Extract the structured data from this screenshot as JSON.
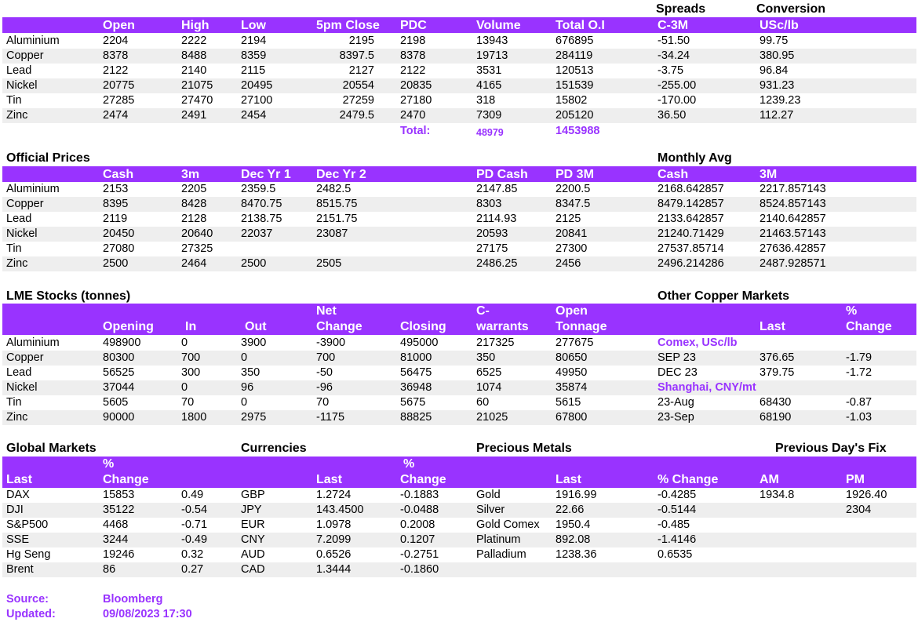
{
  "colors": {
    "header_bg": "#9933ff",
    "header_text": "#ffffff",
    "accent": "#9933ff",
    "row_shade": "#eeeeee"
  },
  "top": {
    "spreads_label": "Spreads",
    "conversion_label": "Conversion",
    "headers": [
      "Open",
      "High",
      "Low",
      "5pm Close",
      "PDC",
      "Volume",
      "Total O.I",
      "C-3M",
      "USc/lb"
    ],
    "rows": [
      {
        "name": "Aluminium",
        "open": "2204",
        "high": "2222",
        "low": "2194",
        "close": "2195",
        "pdc": "2198",
        "volume": "13943",
        "oi": "676895",
        "c3m": "-51.50",
        "usc": "99.75"
      },
      {
        "name": "Copper",
        "open": "8378",
        "high": "8488",
        "low": "8359",
        "close": "8397.5",
        "pdc": "8378",
        "volume": "19713",
        "oi": "284119",
        "c3m": "-34.24",
        "usc": "380.95"
      },
      {
        "name": "Lead",
        "open": "2122",
        "high": "2140",
        "low": "2115",
        "close": "2127",
        "pdc": "2122",
        "volume": "3531",
        "oi": "120513",
        "c3m": "-3.75",
        "usc": "96.84"
      },
      {
        "name": "Nickel",
        "open": "20775",
        "high": "21075",
        "low": "20495",
        "close": "20554",
        "pdc": "20835",
        "volume": "4165",
        "oi": "151539",
        "c3m": "-255.00",
        "usc": "931.23"
      },
      {
        "name": "Tin",
        "open": "27285",
        "high": "27470",
        "low": "27100",
        "close": "27259",
        "pdc": "27180",
        "volume": "318",
        "oi": "15802",
        "c3m": "-170.00",
        "usc": "1239.23"
      },
      {
        "name": "Zinc",
        "open": "2474",
        "high": "2491",
        "low": "2454",
        "close": "2479.5",
        "pdc": "2470",
        "volume": "7309",
        "oi": "205120",
        "c3m": "36.50",
        "usc": "112.27"
      }
    ],
    "total_label": "Total:",
    "total_volume": "48979",
    "total_oi": "1453988"
  },
  "official": {
    "title": "Official Prices",
    "monthly_title": "Monthly Avg",
    "headers": [
      "Cash",
      "3m",
      "Dec Yr 1",
      "Dec Yr 2",
      "PD Cash",
      "PD 3M",
      "Cash",
      "3M"
    ],
    "rows": [
      {
        "name": "Aluminium",
        "cash": "2153",
        "m3": "2205",
        "dec1": "2359.5",
        "dec2": "2482.5",
        "pdcash": "2147.85",
        "pd3m": "2200.5",
        "avgcash": "2168.642857",
        "avg3m": "2217.857143"
      },
      {
        "name": "Copper",
        "cash": "8395",
        "m3": "8428",
        "dec1": "8470.75",
        "dec2": "8515.75",
        "pdcash": "8303",
        "pd3m": "8347.5",
        "avgcash": "8479.142857",
        "avg3m": "8524.857143"
      },
      {
        "name": "Lead",
        "cash": "2119",
        "m3": "2128",
        "dec1": "2138.75",
        "dec2": "2151.75",
        "pdcash": "2114.93",
        "pd3m": "2125",
        "avgcash": "2133.642857",
        "avg3m": "2140.642857"
      },
      {
        "name": "Nickel",
        "cash": "20450",
        "m3": "20640",
        "dec1": "22037",
        "dec2": "23087",
        "pdcash": "20593",
        "pd3m": "20841",
        "avgcash": "21240.71429",
        "avg3m": "21463.57143"
      },
      {
        "name": "Tin",
        "cash": "27080",
        "m3": "27325",
        "dec1": "",
        "dec2": "",
        "pdcash": "27175",
        "pd3m": "27300",
        "avgcash": "27537.85714",
        "avg3m": "27636.42857"
      },
      {
        "name": "Zinc",
        "cash": "2500",
        "m3": "2464",
        "dec1": "2500",
        "dec2": "2505",
        "pdcash": "2486.25",
        "pd3m": "2456",
        "avgcash": "2496.214286",
        "avg3m": "2487.928571"
      }
    ]
  },
  "stocks": {
    "title": "LME Stocks (tonnes)",
    "other_title": "Other Copper Markets",
    "headers": {
      "opening": "Opening",
      "in": "In",
      "out": "Out",
      "net_top": "Net",
      "net_bottom": "Change",
      "closing": "Closing",
      "cw_top": "C-",
      "cw_bottom": "warrants",
      "ot_top": "Open",
      "ot_bottom": "Tonnage",
      "last": "Last",
      "chg_top": "%",
      "chg_bottom": "Change"
    },
    "rows": [
      {
        "name": "Aluminium",
        "opening": "498900",
        "in": "0",
        "out": "3900",
        "net": "-3900",
        "closing": "495000",
        "cw": "217325",
        "ot": "277675"
      },
      {
        "name": "Copper",
        "opening": "80300",
        "in": "700",
        "out": "0",
        "net": "700",
        "closing": "81000",
        "cw": "350",
        "ot": "80650"
      },
      {
        "name": "Lead",
        "opening": "56525",
        "in": "300",
        "out": "350",
        "net": "-50",
        "closing": "56475",
        "cw": "6525",
        "ot": "49950"
      },
      {
        "name": "Nickel",
        "opening": "37044",
        "in": "0",
        "out": "96",
        "net": "-96",
        "closing": "36948",
        "cw": "1074",
        "ot": "35874"
      },
      {
        "name": "Tin",
        "opening": "5605",
        "in": "70",
        "out": "0",
        "net": "70",
        "closing": "5675",
        "cw": "60",
        "ot": "5615"
      },
      {
        "name": "Zinc",
        "opening": "90000",
        "in": "1800",
        "out": "2975",
        "net": "-1175",
        "closing": "88825",
        "cw": "21025",
        "ot": "67800"
      }
    ],
    "other": [
      {
        "label": "Comex, USc/lb",
        "heading": true,
        "last": "",
        "chg": ""
      },
      {
        "label": "SEP 23",
        "heading": false,
        "last": "376.65",
        "chg": "-1.79"
      },
      {
        "label": "DEC 23",
        "heading": false,
        "last": "379.75",
        "chg": "-1.72"
      },
      {
        "label": "Shanghai, CNY/mt",
        "heading": true,
        "last": "",
        "chg": ""
      },
      {
        "label": "23-Aug",
        "heading": false,
        "last": "68430",
        "chg": "-0.87"
      },
      {
        "label": "23-Sep",
        "heading": false,
        "last": "68190",
        "chg": "-1.03"
      }
    ]
  },
  "global": {
    "title": "Global Markets",
    "currencies_title": "Currencies",
    "precious_title": "Precious Metals",
    "fix_title": "Previous Day's Fix",
    "headers": {
      "last": "Last",
      "chg_top": "%",
      "chg_bottom": "Change",
      "cur_last": "Last",
      "cur_chg_top": "%",
      "cur_chg_bottom": "Change",
      "pm_last": "Last",
      "pm_chg": "% Change",
      "am": "AM",
      "pm": "PM"
    },
    "rows": [
      {
        "idx": "DAX",
        "last": "15853",
        "chg": "0.49",
        "cur": "GBP",
        "cur_last": "1.2724",
        "cur_chg": "-0.1883",
        "metal": "Gold",
        "metal_last": "1916.99",
        "metal_chg": "-0.4285",
        "am": "1934.8",
        "pm": "1926.40"
      },
      {
        "idx": "DJI",
        "last": "35122",
        "chg": "-0.54",
        "cur": "JPY",
        "cur_last": "143.4500",
        "cur_chg": "-0.0488",
        "metal": "Silver",
        "metal_last": "22.66",
        "metal_chg": "-0.5144",
        "am": "",
        "pm": "2304"
      },
      {
        "idx": "S&P500",
        "last": "4468",
        "chg": "-0.71",
        "cur": "EUR",
        "cur_last": "1.0978",
        "cur_chg": "0.2008",
        "metal": "Gold Comex",
        "metal_last": "1950.4",
        "metal_chg": "-0.485",
        "am": "",
        "pm": ""
      },
      {
        "idx": "SSE",
        "last": "3244",
        "chg": "-0.49",
        "cur": "CNY",
        "cur_last": "7.2099",
        "cur_chg": "0.1207",
        "metal": "Platinum",
        "metal_last": "892.08",
        "metal_chg": "-1.4146",
        "am": "",
        "pm": ""
      },
      {
        "idx": "Hg Seng",
        "last": "19246",
        "chg": "0.32",
        "cur": "AUD",
        "cur_last": "0.6526",
        "cur_chg": "-0.2751",
        "metal": "Palladium",
        "metal_last": "1238.36",
        "metal_chg": "0.6535",
        "am": "",
        "pm": ""
      },
      {
        "idx": "Brent",
        "last": "86",
        "chg": "0.27",
        "cur": "CAD",
        "cur_last": "1.3444",
        "cur_chg": "-0.1860",
        "metal": "",
        "metal_last": "",
        "metal_chg": "",
        "am": "",
        "pm": ""
      }
    ]
  },
  "footer": {
    "source_label": "Source:",
    "source_value": "Bloomberg",
    "updated_label": "Updated:",
    "updated_value": "09/08/2023 17:30"
  }
}
